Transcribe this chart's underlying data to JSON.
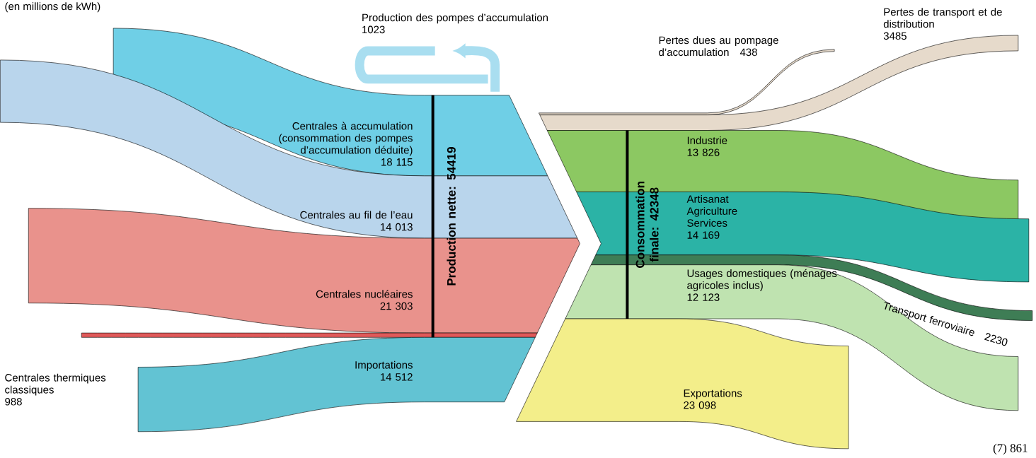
{
  "chart_data": {
    "type": "other",
    "subtitle": "(en millions de kWh)",
    "categories": [
      "Production des pompes d’accumulation",
      "Pertes dues au pompage d’accumulation",
      "Pertes de transport et de distribution",
      "Centrales à accumulation (consommation des pompes d’accumulation déduite)",
      "Centrales au fil de l’eau",
      "Centrales nucléaires",
      "Centrales thermiques classiques",
      "Importations",
      "Industrie",
      "Artisanat Agriculture Services",
      "Usages domestiques (ménages agricoles inclus)",
      "Transport ferroviaire",
      "Exportations"
    ],
    "values": [
      1023,
      438,
      3485,
      18115,
      14013,
      21303,
      988,
      14512,
      13826,
      14169,
      12123,
      2230,
      23098
    ],
    "value_labels": [
      "1023",
      "438",
      "3485",
      "18 115",
      "14 013",
      "21 303",
      "988",
      "14 512",
      "13 826",
      "14 169",
      "12 123",
      "2230",
      "23 098"
    ],
    "colors": [
      "#a9def0",
      "#e6dacb",
      "#e6dacb",
      "#6fcfe6",
      "#b9d5ec",
      "#e9928c",
      "#e05a5a",
      "#62c3d3",
      "#8cc862",
      "#2bb3a6",
      "#bfe3b0",
      "#3e7d55",
      "#f3ee8a"
    ],
    "annotations": [
      "Production nette: 54419",
      "Consommation finale: 42348",
      "(7)   861"
    ]
  }
}
